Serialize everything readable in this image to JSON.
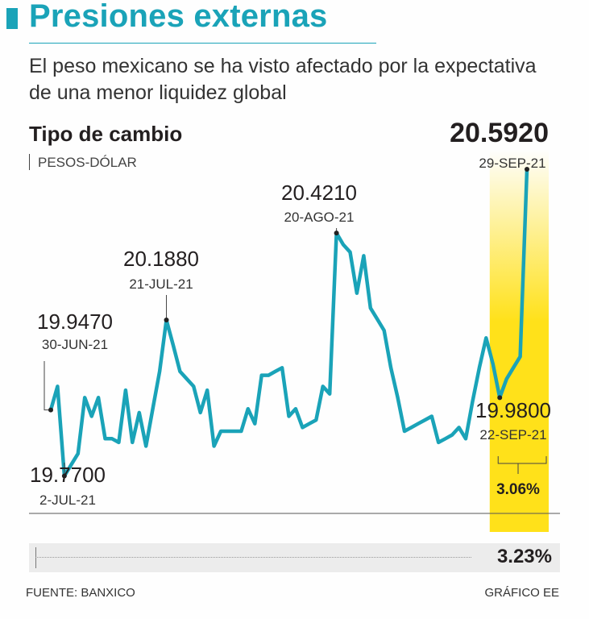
{
  "header": {
    "title": "Presiones externas",
    "subtitle": "El peso mexicano se ha visto afectado por la expectativa de una menor liquidez global"
  },
  "chart_header": {
    "title": "Tipo de cambio",
    "unit": "PESOS-DÓLAR",
    "final_value": "20.5920"
  },
  "colors": {
    "accent": "#1aa3b8",
    "highlight": "#ffe11a",
    "text": "#231f20"
  },
  "chart_data": {
    "type": "line",
    "title": "Tipo de cambio",
    "ylabel": "PESOS-DÓLAR",
    "ylim": [
      19.62,
      20.7
    ],
    "series": [
      {
        "name": "Tipo de cambio",
        "values": [
          19.947,
          20.01,
          19.77,
          19.8,
          19.83,
          19.98,
          19.93,
          19.98,
          19.87,
          19.87,
          19.86,
          20.0,
          19.86,
          19.94,
          19.85,
          19.95,
          20.05,
          20.188,
          20.12,
          20.05,
          20.03,
          20.01,
          19.94,
          20.0,
          19.85,
          19.89,
          19.89,
          19.89,
          19.89,
          19.95,
          19.91,
          20.04,
          20.04,
          20.05,
          20.06,
          19.93,
          19.95,
          19.9,
          19.91,
          19.92,
          20.01,
          19.99,
          20.421,
          20.39,
          20.37,
          20.26,
          20.36,
          20.22,
          20.19,
          20.16,
          20.06,
          19.98,
          19.89,
          19.9,
          19.91,
          19.92,
          19.93,
          19.86,
          19.87,
          19.88,
          19.9,
          19.87,
          19.97,
          20.06,
          20.14,
          20.07,
          19.98,
          20.03,
          20.06,
          20.09,
          20.592
        ]
      }
    ],
    "annotations": [
      {
        "value": "19.9470",
        "date": "30-JUN-21",
        "index": 0
      },
      {
        "value": "19.7700",
        "date": "2-JUL-21",
        "index": 2
      },
      {
        "value": "20.1880",
        "date": "21-JUL-21",
        "index": 17
      },
      {
        "value": "20.4210",
        "date": "20-AGO-21",
        "index": 42
      },
      {
        "value": "19.9800",
        "date": "22-SEP-21",
        "index": 66
      },
      {
        "value": "20.5920",
        "date": "29-SEP-21",
        "index": 70
      }
    ],
    "period_change_highlight": "3.06%",
    "total_change": "3.23%"
  },
  "footer": {
    "source": "FUENTE: BANXICO",
    "credit": "GRÁFICO EE"
  }
}
